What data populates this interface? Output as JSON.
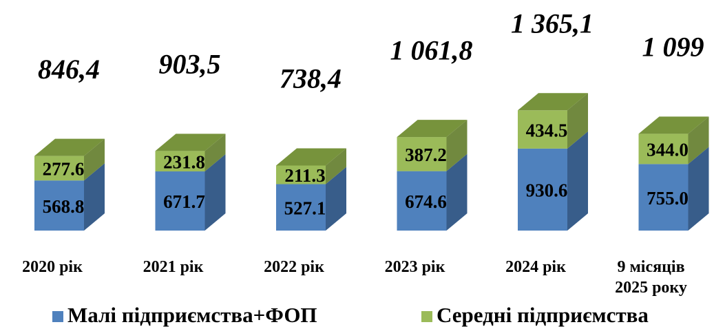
{
  "chart_data": {
    "type": "bar3d_stacked",
    "categories": [
      "2020 рік",
      "2021 рік",
      "2022 рік",
      "2023 рік",
      "2024 рік",
      "9 місяців\n2025 року"
    ],
    "series": [
      {
        "name": "Малі підприємства+ФОП",
        "color": "#4f81bd",
        "side_color": "#385d8a",
        "values": [
          568.8,
          671.7,
          527.1,
          674.6,
          930.6,
          755.0
        ],
        "value_labels": [
          "568.8",
          "671.7",
          "527.1",
          "674.6",
          "930.6",
          "755.0"
        ]
      },
      {
        "name": "Середні підприємства",
        "color": "#9bbb59",
        "side_color": "#71893f",
        "top_color": "#77933c",
        "values": [
          277.6,
          231.8,
          211.3,
          387.2,
          434.5,
          344.0
        ],
        "value_labels": [
          "277.6",
          "231.8",
          "211.3",
          "387.2",
          "434.5",
          "344.0"
        ]
      }
    ],
    "totals": [
      846.4,
      903.5,
      738.4,
      1061.8,
      1365.1,
      1099
    ],
    "total_labels": [
      "846,4",
      "903,5",
      "738,4",
      "1 061,8",
      "1 365,1",
      "1 099"
    ],
    "legend": "bottom"
  }
}
